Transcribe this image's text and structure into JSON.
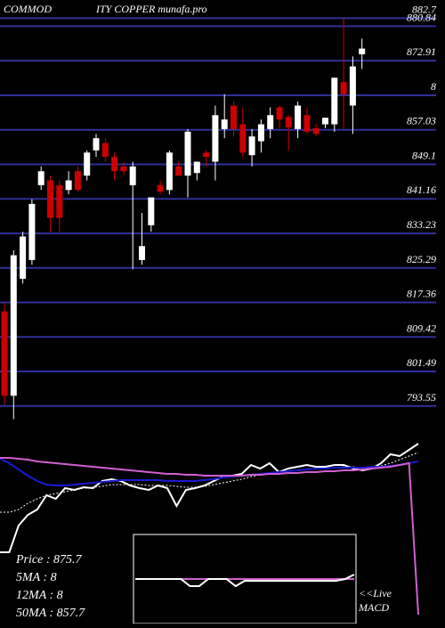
{
  "chart_data": {
    "type": "candlestick",
    "title_parts": [
      "COMMOD",
      "ITY COPPER munafa.pro"
    ],
    "ylim": [
      789,
      884
    ],
    "yticks": [
      882.7,
      880.84,
      872.91,
      {
        "value": 864.97,
        "label": "8"
      },
      857.03,
      849.1,
      841.16,
      833.23,
      825.29,
      817.36,
      809.42,
      801.49,
      793.55
    ],
    "grid": true,
    "grid_color": "#30309a",
    "up_color": "#ffffff",
    "down_color": "#cc0000",
    "open": [
      815.3,
      795.9,
      822.8,
      827.1,
      844.3,
      845.4,
      844.3,
      843.2,
      847.5,
      846.5,
      852.3,
      854.0,
      850.8,
      848.6,
      844.3,
      827.1,
      835.1,
      844.3,
      843.2,
      848.6,
      846.5,
      847.1,
      851.8,
      849.7,
      857.2,
      862.6,
      858.3,
      851.2,
      854.4,
      857.2,
      862.2,
      860.0,
      857.2,
      860.4,
      857.4,
      858.3,
      858.3,
      868.0,
      862.6,
      874.4
    ],
    "high": [
      817.4,
      829.3,
      833.6,
      841.1,
      848.6,
      846.5,
      845.4,
      847.5,
      848.6,
      852.3,
      856.1,
      855.1,
      851.8,
      849.7,
      849.7,
      837.9,
      841.5,
      845.4,
      852.3,
      849.7,
      857.2,
      849.7,
      852.3,
      862.6,
      865.2,
      863.5,
      862.2,
      857.2,
      859.4,
      862.2,
      862.6,
      860.4,
      863.5,
      862.2,
      858.3,
      859.8,
      869.0,
      882.8,
      873.9,
      878.0
    ],
    "low": [
      793.8,
      790.5,
      821.7,
      826.0,
      843.2,
      833.6,
      833.6,
      842.2,
      842.8,
      845.4,
      850.8,
      849.7,
      845.4,
      846.5,
      825.0,
      826.0,
      833.6,
      842.2,
      842.2,
      846.5,
      841.5,
      845.4,
      848.6,
      845.4,
      855.1,
      855.5,
      850.8,
      848.6,
      851.8,
      855.1,
      857.4,
      852.3,
      855.1,
      856.1,
      855.5,
      857.4,
      856.6,
      857.2,
      856.1,
      871.0
    ],
    "close": [
      795.9,
      828.2,
      832.5,
      840.0,
      847.5,
      836.8,
      836.8,
      845.4,
      843.2,
      851.8,
      855.1,
      850.8,
      847.5,
      847.5,
      848.6,
      830.3,
      841.5,
      842.8,
      851.8,
      846.5,
      856.6,
      849.7,
      850.8,
      860.4,
      859.4,
      857.2,
      851.8,
      855.5,
      858.3,
      860.4,
      859.4,
      857.6,
      862.6,
      856.6,
      856.1,
      859.8,
      869.0,
      865.2,
      871.6,
      875.7
    ],
    "indicators": {
      "ylim": [
        0,
        195
      ],
      "series": [
        {
          "color": "#ffffff",
          "style": "solid",
          "values": [
            70,
            70,
            100,
            112,
            118,
            134,
            130,
            142,
            140,
            143,
            142,
            150,
            152,
            150,
            145,
            142,
            140,
            145,
            142,
            122,
            140,
            142,
            145,
            150,
            155,
            156,
            158,
            168,
            164,
            170,
            160,
            164,
            166,
            168,
            166,
            166,
            168,
            168,
            164,
            162,
            164,
            170,
            180,
            178,
            185,
            192
          ]
        },
        {
          "color": "#ffffff",
          "style": "dotted",
          "values": [
            115,
            115,
            118,
            125,
            130,
            134,
            136,
            138,
            140,
            142,
            143,
            144,
            146,
            146,
            146,
            146,
            145,
            145,
            145,
            144,
            143,
            143,
            144,
            146,
            148,
            150,
            152,
            155,
            157,
            159,
            160,
            161,
            162,
            163,
            164,
            164,
            165,
            166,
            166,
            165,
            165,
            167,
            170,
            174,
            178,
            182
          ]
        },
        {
          "color": "#1a1ad0",
          "style": "solid",
          "values": [
            175,
            170,
            163,
            156,
            150,
            146,
            145,
            145,
            146,
            147,
            148,
            149,
            150,
            151,
            151,
            151,
            151,
            151,
            150,
            150,
            150,
            150,
            151,
            152,
            154,
            155,
            156,
            157,
            158,
            159,
            160,
            161,
            162,
            163,
            164,
            164,
            165,
            165,
            165,
            165,
            166,
            166,
            167,
            168,
            170,
            172
          ]
        },
        {
          "color": "#d060d0",
          "style": "solid",
          "values": [
            176,
            176,
            175,
            174,
            172,
            171,
            170,
            169,
            168,
            167,
            166,
            165,
            164,
            163,
            162,
            161,
            160,
            159,
            158,
            158,
            157,
            157,
            156,
            156,
            156,
            156,
            156,
            157,
            157,
            158,
            158,
            159,
            159,
            160,
            160,
            161,
            161,
            162,
            162,
            163,
            164,
            165,
            166,
            168,
            170,
            0
          ]
        }
      ]
    },
    "macd": {
      "ylim": [
        0,
        100
      ],
      "label_parts": [
        "<<Live",
        "MACD"
      ],
      "series": [
        {
          "color": "#d060d0",
          "values": [
            50,
            50,
            50,
            50,
            50,
            50,
            50,
            50,
            50,
            50,
            50,
            50,
            50,
            50,
            50,
            50,
            50,
            50,
            50,
            50,
            50,
            50,
            50,
            50,
            50
          ]
        },
        {
          "color": "#ffffff",
          "values": [
            50,
            50,
            50,
            50,
            50,
            50,
            42,
            42,
            50,
            50,
            50,
            42,
            48,
            48,
            48,
            48,
            48,
            48,
            48,
            48,
            48,
            48,
            48,
            50,
            55
          ]
        }
      ]
    },
    "info": [
      "Price   : 875.7",
      "5MA : 8",
      "12MA : 8",
      "50MA : 857.7"
    ]
  }
}
